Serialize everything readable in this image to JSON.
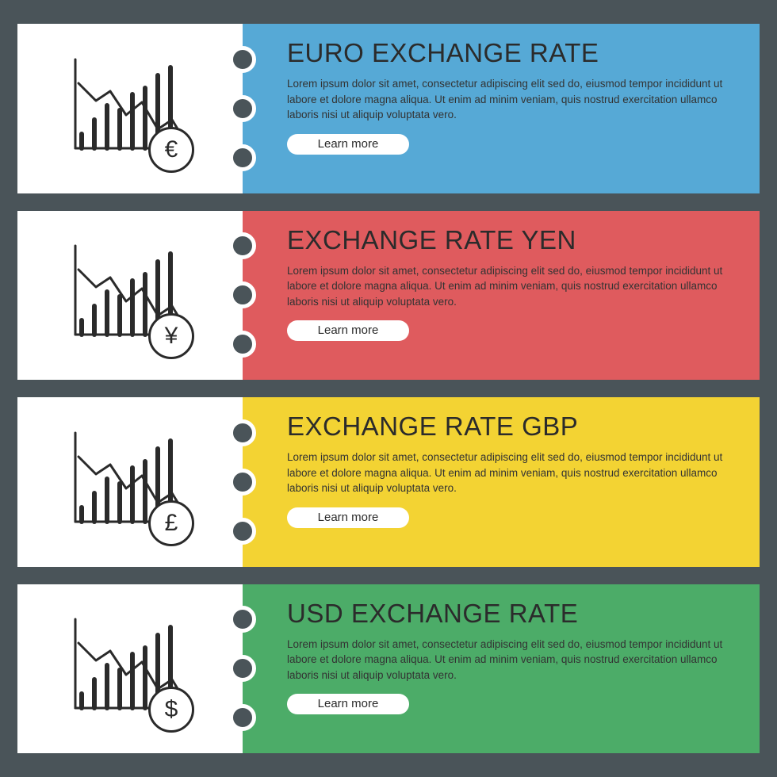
{
  "page": {
    "background_color": "#4a5459",
    "banner_gap": 22,
    "page_padding": "30px 22px"
  },
  "icon": {
    "stroke": "#2a2a2a",
    "stroke_width": 3,
    "coin_border_width": 3,
    "coin_diameter": 58,
    "bars": [
      18,
      36,
      54,
      48,
      68,
      76,
      92,
      102
    ],
    "line_points": [
      [
        0,
        80
      ],
      [
        22,
        58
      ],
      [
        40,
        70
      ],
      [
        60,
        40
      ],
      [
        80,
        56
      ],
      [
        100,
        22
      ],
      [
        118,
        34
      ],
      [
        135,
        6
      ]
    ],
    "arrow_head": [
      [
        128,
        4
      ],
      [
        138,
        0
      ],
      [
        136,
        12
      ]
    ]
  },
  "common": {
    "body_text": "Lorem ipsum dolor sit amet, consectetur adipiscing elit sed do, eiusmod tempor incididunt ut labore et dolore magna aliqua. Ut enim ad minim veniam, quis nostrud exercitation ullamco laboris nisi ut aliquip voluptata vero.",
    "button_label": "Learn more",
    "button_bg": "#ffffff",
    "button_text_color": "#2a2a2a",
    "title_fontsize": 33,
    "body_fontsize": 13.5,
    "icon_panel_width": 284,
    "dot_diameter": 34,
    "dot_border": 5,
    "dot_gap": 28
  },
  "banners": [
    {
      "id": "euro",
      "title": "EURO EXCHANGE RATE",
      "color": "#56a9d6",
      "currency_symbol": "€",
      "icon_name": "euro-coin-icon"
    },
    {
      "id": "yen",
      "title": "EXCHANGE RATE YEN",
      "color": "#df5b5e",
      "currency_symbol": "¥",
      "icon_name": "yen-coin-icon"
    },
    {
      "id": "gbp",
      "title": "EXCHANGE RATE GBP",
      "color": "#f3d333",
      "currency_symbol": "£",
      "icon_name": "gbp-coin-icon"
    },
    {
      "id": "usd",
      "title": "USD EXCHANGE RATE",
      "color": "#4cac68",
      "currency_symbol": "$",
      "icon_name": "usd-coin-icon"
    }
  ]
}
